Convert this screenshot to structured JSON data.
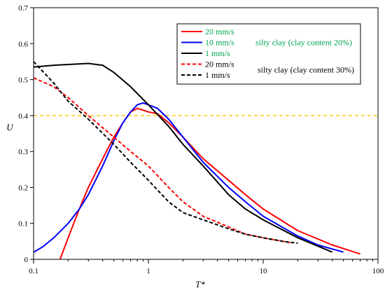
{
  "chart_data": {
    "type": "line",
    "title": "",
    "xlabel": "T*",
    "ylabel": "U",
    "xscale": "log",
    "xlim": [
      0.1,
      100
    ],
    "ylim": [
      0,
      0.7
    ],
    "x_ticks": [
      "0.1",
      "1",
      "10",
      "100"
    ],
    "y_ticks": [
      "0",
      "0.1",
      "0.2",
      "0.3",
      "0.4",
      "0.5",
      "0.6",
      "0.7"
    ],
    "grid": false,
    "legend_position": "top-right",
    "legend_groups": [
      {
        "label": "silty clay (clay content 20%)",
        "color": "#00a651"
      },
      {
        "label": "silty clay (clay content 30%)",
        "color": "#000000"
      }
    ],
    "reference_line": {
      "y": 0.4,
      "color": "#ffc000",
      "style": "dashed"
    },
    "series": [
      {
        "name": "20 mm/s",
        "color": "#ff0000",
        "style": "solid",
        "group": 0,
        "x": [
          0.17,
          0.2,
          0.25,
          0.3,
          0.4,
          0.5,
          0.6,
          0.7,
          0.8,
          0.9,
          1.0,
          1.2,
          1.5,
          2,
          3,
          5,
          7,
          10,
          20,
          40,
          70
        ],
        "y": [
          0.0,
          0.06,
          0.14,
          0.2,
          0.28,
          0.34,
          0.38,
          0.41,
          0.42,
          0.415,
          0.41,
          0.405,
          0.38,
          0.34,
          0.28,
          0.22,
          0.18,
          0.14,
          0.08,
          0.04,
          0.015
        ]
      },
      {
        "name": "10 mm/s",
        "color": "#0000ff",
        "style": "solid",
        "group": 0,
        "x": [
          0.1,
          0.12,
          0.15,
          0.2,
          0.25,
          0.3,
          0.4,
          0.5,
          0.6,
          0.7,
          0.8,
          0.9,
          1.0,
          1.2,
          1.5,
          2,
          3,
          5,
          7,
          10,
          20,
          30,
          50
        ],
        "y": [
          0.02,
          0.035,
          0.06,
          0.1,
          0.14,
          0.18,
          0.26,
          0.33,
          0.38,
          0.41,
          0.43,
          0.435,
          0.43,
          0.42,
          0.39,
          0.34,
          0.27,
          0.2,
          0.16,
          0.12,
          0.065,
          0.04,
          0.02
        ]
      },
      {
        "name": "1 mm/s",
        "color": "#000000",
        "style": "solid",
        "group": 0,
        "x": [
          0.1,
          0.15,
          0.2,
          0.3,
          0.4,
          0.5,
          0.7,
          1.0,
          1.5,
          2,
          3,
          5,
          7,
          10,
          20,
          40
        ],
        "y": [
          0.535,
          0.54,
          0.542,
          0.545,
          0.54,
          0.52,
          0.48,
          0.43,
          0.37,
          0.32,
          0.26,
          0.18,
          0.14,
          0.11,
          0.06,
          0.02
        ]
      },
      {
        "name": "20 mm/s",
        "color": "#ff0000",
        "style": "dashed",
        "group": 1,
        "x": [
          0.1,
          0.15,
          0.2,
          0.3,
          0.5,
          0.7,
          1.0,
          1.5,
          2,
          3,
          5,
          7,
          10,
          15,
          18
        ],
        "y": [
          0.505,
          0.48,
          0.45,
          0.4,
          0.34,
          0.3,
          0.26,
          0.2,
          0.16,
          0.12,
          0.09,
          0.07,
          0.06,
          0.05,
          0.045
        ]
      },
      {
        "name": "1 mm/s",
        "color": "#000000",
        "style": "dashed",
        "group": 1,
        "x": [
          0.1,
          0.15,
          0.2,
          0.3,
          0.5,
          0.7,
          1.0,
          1.5,
          2,
          3,
          5,
          7,
          10,
          15,
          20
        ],
        "y": [
          0.55,
          0.49,
          0.44,
          0.39,
          0.32,
          0.27,
          0.22,
          0.16,
          0.13,
          0.11,
          0.085,
          0.07,
          0.06,
          0.05,
          0.045
        ]
      }
    ]
  }
}
